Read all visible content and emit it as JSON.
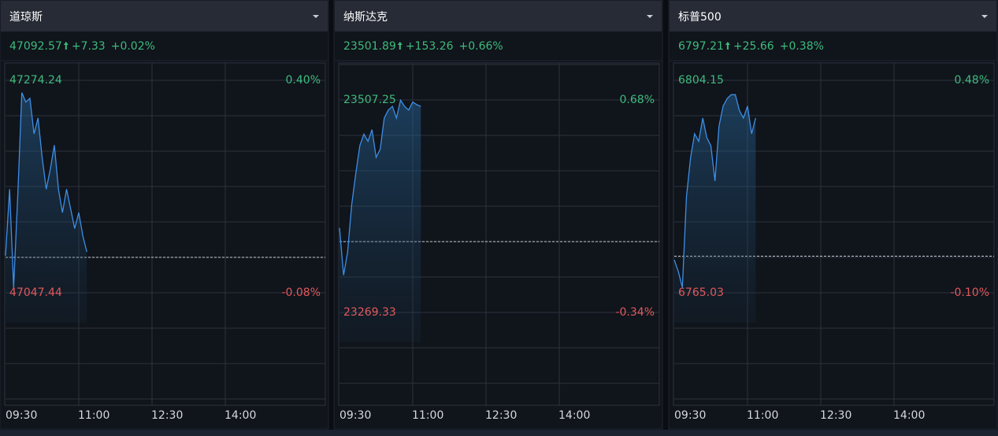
{
  "chart_data": [
    {
      "type": "line",
      "title": "道琼斯",
      "price": "47092.57",
      "change": "+7.33",
      "change_pct": "+0.02%",
      "x": [
        "09:30",
        "09:35",
        "09:40",
        "09:45",
        "09:50",
        "09:55",
        "10:00",
        "10:05",
        "10:10",
        "10:15",
        "10:20",
        "10:25",
        "10:30",
        "10:35",
        "10:40",
        "10:45",
        "10:50",
        "10:55",
        "11:00",
        "11:05",
        "11:10"
      ],
      "series": [
        {
          "name": "道琼斯",
          "color": "#3d8ee6",
          "values": [
            47087,
            47158,
            47053,
            47150,
            47261,
            47251,
            47255,
            47217,
            47234,
            47192,
            47158,
            47179,
            47205,
            47158,
            47133,
            47158,
            47137,
            47116,
            47133,
            47108,
            47091
          ]
        }
      ],
      "xlim": [
        "09:30",
        "16:00"
      ],
      "xticks": [
        "09:30",
        "11:00",
        "12:30",
        "14:00"
      ],
      "ylim": [
        47047.44,
        47274.24
      ],
      "yticks": [
        47047.44,
        47274.24
      ],
      "y2lim": [
        -0.08,
        0.4
      ],
      "y2ticks": [
        {
          "value": -0.08,
          "label": "-0.08%"
        },
        {
          "value": 0.4,
          "label": "0.40%"
        }
      ],
      "up_color": "#3dbb7c",
      "down_color": "#e2585b"
    },
    {
      "type": "line",
      "title": "纳斯达克",
      "price": "23501.89",
      "change": "+153.26",
      "change_pct": "+0.66%",
      "x": [
        "09:30",
        "09:35",
        "09:40",
        "09:45",
        "09:50",
        "09:55",
        "10:00",
        "10:05",
        "10:10",
        "10:15",
        "10:20",
        "10:25",
        "10:30",
        "10:35",
        "10:40",
        "10:45",
        "10:50",
        "10:55",
        "11:00",
        "11:05",
        "11:10"
      ],
      "series": [
        {
          "name": "纳斯达克",
          "color": "#3d8ee6",
          "values": [
            23364,
            23311,
            23337,
            23390,
            23425,
            23456,
            23469,
            23461,
            23474,
            23443,
            23452,
            23487,
            23496,
            23500,
            23487,
            23507,
            23500,
            23496,
            23505,
            23502,
            23500
          ]
        }
      ],
      "xlim": [
        "09:30",
        "16:00"
      ],
      "xticks": [
        "09:30",
        "11:00",
        "12:30",
        "14:00"
      ],
      "ylim": [
        23269.33,
        23507.25
      ],
      "yticks": [
        23269.33,
        23507.25
      ],
      "y2lim": [
        -0.34,
        0.68
      ],
      "y2ticks": [
        {
          "value": -0.34,
          "label": "-0.34%"
        },
        {
          "value": 0.68,
          "label": "0.68%"
        }
      ],
      "up_color": "#3dbb7c",
      "down_color": "#e2585b"
    },
    {
      "type": "line",
      "title": "标普500",
      "price": "6797.21",
      "change": "+25.66",
      "change_pct": "+0.38%",
      "x": [
        "09:30",
        "09:35",
        "09:40",
        "09:45",
        "09:50",
        "09:55",
        "10:00",
        "10:05",
        "10:10",
        "10:15",
        "10:20",
        "10:25",
        "10:30",
        "10:35",
        "10:40",
        "10:45",
        "10:50",
        "10:55",
        "11:00",
        "11:05",
        "11:10"
      ],
      "series": [
        {
          "name": "标普500",
          "color": "#3d8ee6",
          "values": [
            6771.1,
            6768.9,
            6766.0,
            6782.7,
            6789.9,
            6794.3,
            6792.9,
            6797.2,
            6793.6,
            6792.1,
            6785.6,
            6795.7,
            6799.4,
            6800.8,
            6801.5,
            6801.5,
            6798.6,
            6797.2,
            6799.4,
            6794.3,
            6797.2
          ]
        }
      ],
      "xlim": [
        "09:30",
        "16:00"
      ],
      "xticks": [
        "09:30",
        "11:00",
        "12:30",
        "14:00"
      ],
      "ylim": [
        6765.03,
        6804.15
      ],
      "yticks": [
        6765.03,
        6804.15
      ],
      "y2lim": [
        -0.1,
        0.48
      ],
      "y2ticks": [
        {
          "value": -0.1,
          "label": "-0.10%"
        },
        {
          "value": 0.48,
          "label": "0.48%"
        }
      ],
      "up_color": "#3dbb7c",
      "down_color": "#e2585b"
    }
  ]
}
